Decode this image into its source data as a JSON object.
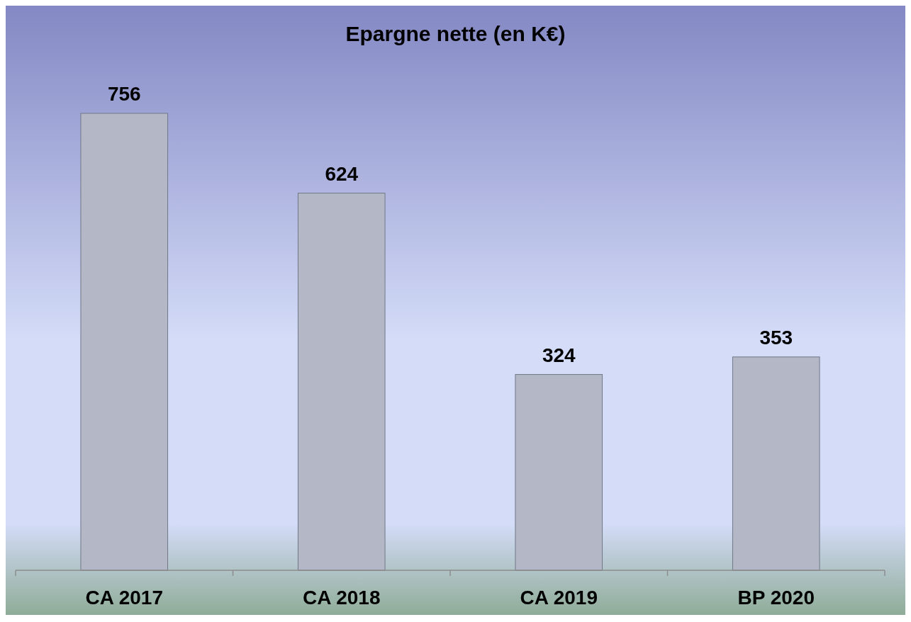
{
  "chart_data": {
    "type": "bar",
    "title": "Epargne nette (en K€)",
    "categories": [
      "CA 2017",
      "CA 2018",
      "CA 2019",
      "BP 2020"
    ],
    "values": [
      756,
      624,
      324,
      353
    ],
    "color": "#b4b8c6",
    "data_labels": true
  }
}
